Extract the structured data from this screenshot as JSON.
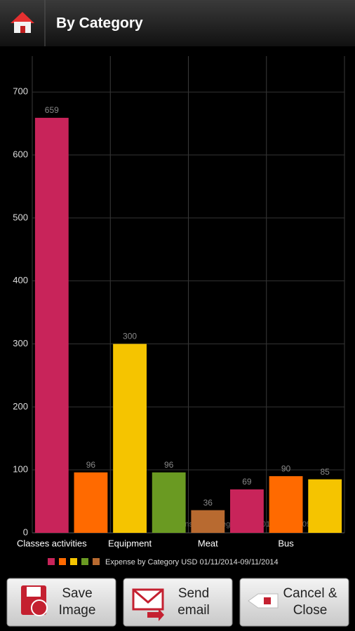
{
  "app_bar": {
    "title": "By Category"
  },
  "chart_data": {
    "type": "bar",
    "categories": [
      "Classes activities",
      null,
      "Equipment",
      null,
      "Meat",
      null,
      "Bus",
      null
    ],
    "series": [
      {
        "name": "Expense by Category USD 01/11/2014-09/11/2014",
        "colors": [
          "#c8245a",
          "#ff6a00",
          "#f5c400",
          "#6a9a22",
          "#b86a30",
          "#c8245a",
          "#ff6a00",
          "#f5c400"
        ],
        "values": [
          659,
          96,
          300,
          96,
          36,
          69,
          90,
          85
        ]
      }
    ],
    "ylim": [
      0,
      757
    ],
    "yticks": [
      0,
      100,
      200,
      300,
      400,
      500,
      600,
      700
    ],
    "grid": true
  },
  "buttons": [
    {
      "label": [
        "Save",
        "Image"
      ]
    },
    {
      "label": [
        "Send",
        "email"
      ]
    },
    {
      "label": [
        "Cancel &",
        "Close"
      ]
    }
  ]
}
